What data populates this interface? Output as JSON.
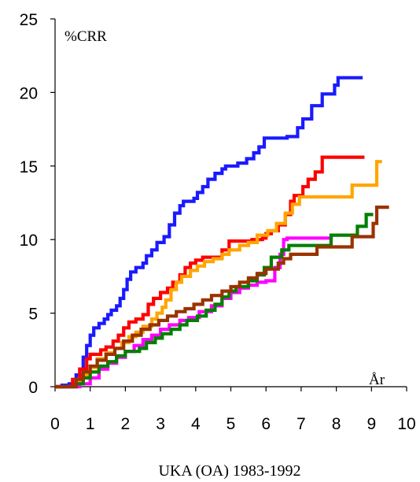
{
  "chart_data": {
    "type": "line",
    "title": "",
    "caption": "UKA (OA) 1983-1992",
    "xlabel": "År",
    "ylabel": "%CRR",
    "xlim": [
      0,
      10
    ],
    "ylim": [
      0,
      25
    ],
    "xticks": [
      0,
      1,
      2,
      3,
      4,
      5,
      6,
      7,
      8,
      9,
      10
    ],
    "yticks": [
      0,
      5,
      10,
      15,
      20,
      25
    ],
    "grid": false,
    "legend": "none",
    "series": [
      {
        "color": "#1a1aff",
        "points": [
          [
            0,
            0
          ],
          [
            0.2,
            0.1
          ],
          [
            0.4,
            0.2
          ],
          [
            0.6,
            0.8
          ],
          [
            0.8,
            2.0
          ],
          [
            0.9,
            2.8
          ],
          [
            1.0,
            3.5
          ],
          [
            1.1,
            4.0
          ],
          [
            1.25,
            4.3
          ],
          [
            1.4,
            4.6
          ],
          [
            1.5,
            4.9
          ],
          [
            1.6,
            5.2
          ],
          [
            1.75,
            5.5
          ],
          [
            1.85,
            6.0
          ],
          [
            1.95,
            6.6
          ],
          [
            2.05,
            7.3
          ],
          [
            2.15,
            7.8
          ],
          [
            2.3,
            8.1
          ],
          [
            2.5,
            8.4
          ],
          [
            2.6,
            8.9
          ],
          [
            2.75,
            9.3
          ],
          [
            2.9,
            9.8
          ],
          [
            3.1,
            10.2
          ],
          [
            3.25,
            11.0
          ],
          [
            3.4,
            11.8
          ],
          [
            3.55,
            12.3
          ],
          [
            3.65,
            12.6
          ],
          [
            3.95,
            12.8
          ],
          [
            4.05,
            13.2
          ],
          [
            4.2,
            13.6
          ],
          [
            4.35,
            14.1
          ],
          [
            4.55,
            14.5
          ],
          [
            4.75,
            14.8
          ],
          [
            4.85,
            15.0
          ],
          [
            5.2,
            15.2
          ],
          [
            5.45,
            15.5
          ],
          [
            5.65,
            15.9
          ],
          [
            5.8,
            16.3
          ],
          [
            5.95,
            16.9
          ],
          [
            6.6,
            17.0
          ],
          [
            6.9,
            17.6
          ],
          [
            7.05,
            18.2
          ],
          [
            7.3,
            19.1
          ],
          [
            7.6,
            19.9
          ],
          [
            7.95,
            20.5
          ],
          [
            8.05,
            21.0
          ],
          [
            8.75,
            21.0
          ]
        ]
      },
      {
        "color": "#ff0000",
        "points": [
          [
            0,
            0
          ],
          [
            0.3,
            0
          ],
          [
            0.5,
            0.5
          ],
          [
            0.7,
            1.2
          ],
          [
            0.9,
            1.9
          ],
          [
            1.0,
            2.2
          ],
          [
            1.3,
            2.5
          ],
          [
            1.45,
            2.7
          ],
          [
            1.65,
            3.1
          ],
          [
            1.8,
            3.5
          ],
          [
            1.95,
            4.0
          ],
          [
            2.1,
            4.4
          ],
          [
            2.3,
            4.6
          ],
          [
            2.5,
            4.9
          ],
          [
            2.65,
            5.6
          ],
          [
            2.8,
            6.0
          ],
          [
            3.0,
            6.4
          ],
          [
            3.2,
            6.7
          ],
          [
            3.35,
            7.1
          ],
          [
            3.55,
            7.6
          ],
          [
            3.7,
            8.1
          ],
          [
            3.85,
            8.4
          ],
          [
            4.0,
            8.6
          ],
          [
            4.2,
            8.8
          ],
          [
            4.6,
            8.8
          ],
          [
            4.75,
            9.3
          ],
          [
            4.95,
            9.9
          ],
          [
            5.6,
            10.0
          ],
          [
            5.9,
            10.1
          ],
          [
            6.0,
            10.4
          ],
          [
            6.15,
            10.6
          ],
          [
            6.35,
            11.0
          ],
          [
            6.55,
            11.7
          ],
          [
            6.7,
            12.6
          ],
          [
            6.8,
            13.0
          ],
          [
            7.0,
            13.0
          ],
          [
            7.05,
            13.6
          ],
          [
            7.2,
            14.1
          ],
          [
            7.4,
            14.6
          ],
          [
            7.6,
            15.6
          ],
          [
            8.8,
            15.6
          ]
        ]
      },
      {
        "color": "#ffa500",
        "points": [
          [
            0,
            0
          ],
          [
            0.4,
            0
          ],
          [
            0.6,
            0.4
          ],
          [
            0.8,
            0.8
          ],
          [
            1.0,
            1.3
          ],
          [
            1.2,
            1.9
          ],
          [
            1.45,
            2.3
          ],
          [
            1.7,
            2.6
          ],
          [
            1.9,
            3.0
          ],
          [
            2.1,
            3.4
          ],
          [
            2.3,
            3.7
          ],
          [
            2.5,
            4.1
          ],
          [
            2.75,
            4.6
          ],
          [
            2.9,
            5.0
          ],
          [
            3.05,
            5.4
          ],
          [
            3.15,
            5.9
          ],
          [
            3.3,
            6.6
          ],
          [
            3.45,
            7.1
          ],
          [
            3.6,
            7.5
          ],
          [
            3.85,
            7.9
          ],
          [
            4.05,
            8.2
          ],
          [
            4.25,
            8.5
          ],
          [
            4.5,
            8.7
          ],
          [
            4.75,
            9.0
          ],
          [
            4.95,
            9.3
          ],
          [
            5.25,
            9.6
          ],
          [
            5.5,
            9.8
          ],
          [
            5.75,
            10.3
          ],
          [
            6.05,
            10.6
          ],
          [
            6.3,
            11.1
          ],
          [
            6.55,
            11.8
          ],
          [
            6.75,
            12.4
          ],
          [
            6.95,
            12.9
          ],
          [
            8.3,
            12.9
          ],
          [
            8.45,
            13.7
          ],
          [
            9.0,
            13.7
          ],
          [
            9.15,
            15.3
          ],
          [
            9.3,
            15.3
          ]
        ]
      },
      {
        "color": "#ff00ff",
        "points": [
          [
            0,
            0
          ],
          [
            0.5,
            0
          ],
          [
            0.7,
            0.2
          ],
          [
            1.0,
            0.6
          ],
          [
            1.25,
            1.2
          ],
          [
            1.5,
            1.6
          ],
          [
            1.75,
            2.0
          ],
          [
            2.0,
            2.4
          ],
          [
            2.25,
            2.8
          ],
          [
            2.5,
            3.2
          ],
          [
            2.75,
            3.5
          ],
          [
            3.0,
            3.9
          ],
          [
            3.25,
            4.2
          ],
          [
            3.55,
            4.5
          ],
          [
            3.8,
            4.7
          ],
          [
            4.1,
            5.1
          ],
          [
            4.45,
            5.5
          ],
          [
            4.75,
            6.0
          ],
          [
            5.0,
            6.4
          ],
          [
            5.25,
            6.7
          ],
          [
            5.5,
            6.9
          ],
          [
            5.75,
            7.1
          ],
          [
            6.0,
            7.2
          ],
          [
            6.25,
            8.1
          ],
          [
            6.4,
            9.0
          ],
          [
            6.5,
            10.0
          ],
          [
            6.6,
            10.1
          ],
          [
            7.9,
            10.1
          ]
        ]
      },
      {
        "color": "#008000",
        "points": [
          [
            0,
            0
          ],
          [
            0.4,
            0
          ],
          [
            0.6,
            0.2
          ],
          [
            0.8,
            0.6
          ],
          [
            1.0,
            1.0
          ],
          [
            1.25,
            1.4
          ],
          [
            1.5,
            1.7
          ],
          [
            1.75,
            2.1
          ],
          [
            2.0,
            2.4
          ],
          [
            2.4,
            2.6
          ],
          [
            2.6,
            3.0
          ],
          [
            2.85,
            3.3
          ],
          [
            3.05,
            3.6
          ],
          [
            3.3,
            3.9
          ],
          [
            3.55,
            4.2
          ],
          [
            3.75,
            4.5
          ],
          [
            4.05,
            4.8
          ],
          [
            4.3,
            5.2
          ],
          [
            4.55,
            5.6
          ],
          [
            4.75,
            6.1
          ],
          [
            4.95,
            6.5
          ],
          [
            5.15,
            6.8
          ],
          [
            5.5,
            7.2
          ],
          [
            5.75,
            7.6
          ],
          [
            5.95,
            8.1
          ],
          [
            6.15,
            8.8
          ],
          [
            6.45,
            9.3
          ],
          [
            6.65,
            9.6
          ],
          [
            7.65,
            9.6
          ],
          [
            7.85,
            10.3
          ],
          [
            8.45,
            10.3
          ],
          [
            8.6,
            10.9
          ],
          [
            8.85,
            11.7
          ],
          [
            9.05,
            11.7
          ]
        ]
      },
      {
        "color": "#993300",
        "points": [
          [
            0,
            0
          ],
          [
            0.4,
            0
          ],
          [
            0.6,
            0.5
          ],
          [
            0.8,
            1.0
          ],
          [
            1.0,
            1.4
          ],
          [
            1.2,
            1.8
          ],
          [
            1.45,
            2.2
          ],
          [
            1.7,
            2.6
          ],
          [
            1.95,
            3.1
          ],
          [
            2.2,
            3.5
          ],
          [
            2.45,
            3.9
          ],
          [
            2.7,
            4.2
          ],
          [
            2.95,
            4.5
          ],
          [
            3.2,
            4.8
          ],
          [
            3.45,
            5.1
          ],
          [
            3.7,
            5.3
          ],
          [
            3.95,
            5.6
          ],
          [
            4.2,
            5.9
          ],
          [
            4.45,
            6.2
          ],
          [
            4.75,
            6.5
          ],
          [
            5.0,
            6.8
          ],
          [
            5.25,
            7.1
          ],
          [
            5.5,
            7.4
          ],
          [
            5.75,
            7.7
          ],
          [
            6.0,
            8.0
          ],
          [
            6.35,
            8.4
          ],
          [
            6.5,
            8.7
          ],
          [
            6.7,
            9.0
          ],
          [
            7.2,
            9.0
          ],
          [
            7.45,
            9.5
          ],
          [
            8.3,
            9.5
          ],
          [
            8.45,
            10.2
          ],
          [
            8.9,
            10.2
          ],
          [
            9.05,
            11.1
          ],
          [
            9.15,
            12.2
          ],
          [
            9.5,
            12.2
          ]
        ]
      }
    ]
  }
}
